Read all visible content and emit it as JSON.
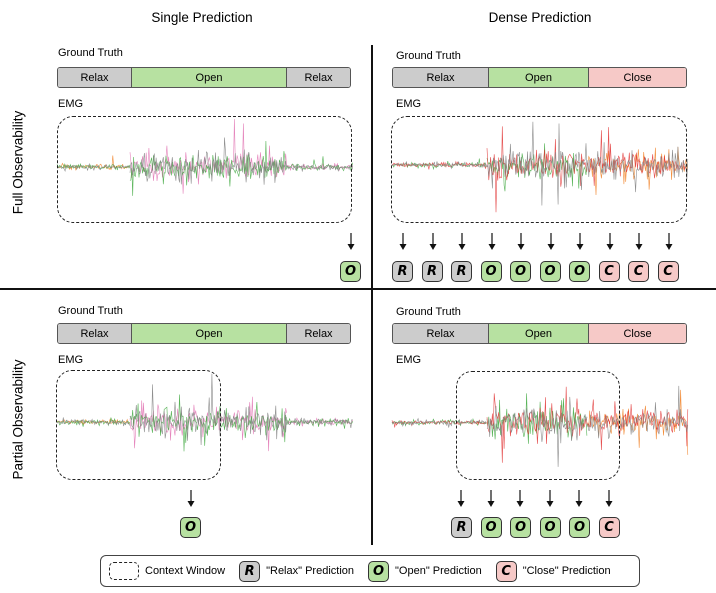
{
  "columns": {
    "single": "Single Prediction",
    "dense": "Dense Prediction"
  },
  "rows": {
    "full": "Full Observability",
    "partial": "Partial Observability"
  },
  "panel_labels": {
    "ground_truth": "Ground Truth",
    "emg": "EMG"
  },
  "panels": {
    "top_left": {
      "segments": [
        {
          "label": "Relax",
          "cls": "relax"
        },
        {
          "label": "Open",
          "cls": "open"
        },
        {
          "label": "Relax",
          "cls": "relax"
        }
      ],
      "predictions": [
        "O"
      ]
    },
    "top_right": {
      "segments": [
        {
          "label": "Relax",
          "cls": "relax"
        },
        {
          "label": "Open",
          "cls": "open"
        },
        {
          "label": "Close",
          "cls": "close"
        }
      ],
      "predictions": [
        "R",
        "R",
        "R",
        "O",
        "O",
        "O",
        "O",
        "C",
        "C",
        "C"
      ]
    },
    "bottom_left": {
      "segments": [
        {
          "label": "Relax",
          "cls": "relax"
        },
        {
          "label": "Open",
          "cls": "open"
        },
        {
          "label": "Relax",
          "cls": "relax"
        }
      ],
      "predictions": [
        "O"
      ]
    },
    "bottom_right": {
      "segments": [
        {
          "label": "Relax",
          "cls": "relax"
        },
        {
          "label": "Open",
          "cls": "open"
        },
        {
          "label": "Close",
          "cls": "close"
        }
      ],
      "predictions": [
        "R",
        "O",
        "O",
        "O",
        "O",
        "C"
      ]
    }
  },
  "legend": {
    "context_window": "Context  Window",
    "relax_symbol": "R",
    "relax_label": "\"Relax\" Prediction",
    "open_symbol": "O",
    "open_label": "\"Open\" Prediction",
    "close_symbol": "C",
    "close_label": "\"Close\" Prediction"
  },
  "colors": {
    "relax": "#cccccc",
    "open": "#b7e1a1",
    "close": "#f6c9c7",
    "emg_gray": "#888888",
    "emg_green": "#3aa63a",
    "emg_red": "#e03030",
    "emg_orange": "#f07a1a",
    "emg_pink": "#e070b0"
  }
}
